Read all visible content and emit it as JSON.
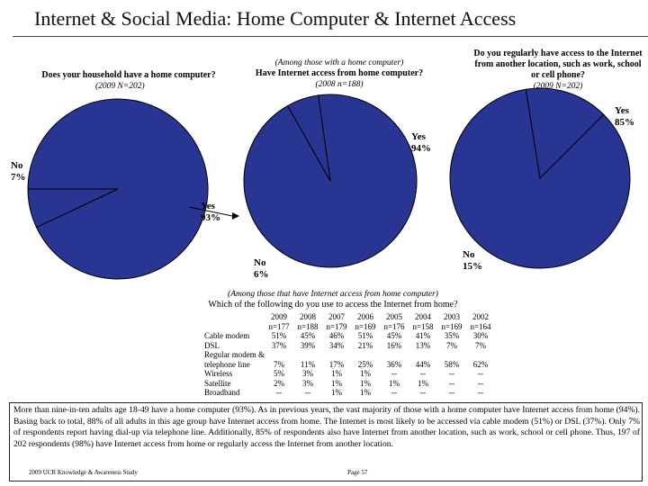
{
  "title": "Internet & Social Media:  Home Computer & Internet Access",
  "chart_data": [
    {
      "type": "pie",
      "title": "Does your household have a home computer?",
      "subtitle": "(2009 N=202)",
      "slices": [
        {
          "label": "Yes",
          "value": 93,
          "display": "93%"
        },
        {
          "label": "No",
          "value": 7,
          "display": "7%"
        }
      ]
    },
    {
      "type": "pie",
      "title": "Have Internet access from home computer?",
      "pretitle": "(Among those with a home computer)",
      "subtitle": "(2008 n=188)",
      "slices": [
        {
          "label": "Yes",
          "value": 94,
          "display": "94%"
        },
        {
          "label": "No",
          "value": 6,
          "display": "6%"
        }
      ]
    },
    {
      "type": "pie",
      "title": "Do you regularly have access to the Internet from another location, such as work, school or cell phone?",
      "subtitle": "(2009 N=202)",
      "slices": [
        {
          "label": "Yes",
          "value": 85,
          "display": "85%"
        },
        {
          "label": "No",
          "value": 15,
          "display": "15%"
        }
      ]
    }
  ],
  "table": {
    "pretitle": "(Among those that have Internet access from home computer)",
    "title": "Which of the following do you use to access the Internet from home?",
    "years": [
      "2009",
      "2008",
      "2007",
      "2006",
      "2005",
      "2004",
      "2003",
      "2002"
    ],
    "ns": [
      "n=177",
      "n=188",
      "n=179",
      "n=169",
      "n=176",
      "n=158",
      "n=169",
      "n=164"
    ],
    "rows": [
      {
        "label": "Cable modem",
        "values": [
          "51%",
          "45%",
          "46%",
          "51%",
          "45%",
          "41%",
          "35%",
          "30%"
        ]
      },
      {
        "label": "DSL",
        "values": [
          "37%",
          "39%",
          "34%",
          "21%",
          "16%",
          "13%",
          "7%",
          "7%"
        ]
      },
      {
        "label": "Regular modem &",
        "values": [
          "",
          "",
          "",
          "",
          "",
          "",
          "",
          ""
        ]
      },
      {
        "label": "telephone line",
        "values": [
          "7%",
          "11%",
          "17%",
          "25%",
          "36%",
          "44%",
          "58%",
          "62%"
        ]
      },
      {
        "label": "Wireless",
        "values": [
          "5%",
          "3%",
          "1%",
          "1%",
          "--",
          "--",
          "--",
          "--"
        ]
      },
      {
        "label": "Satellite",
        "values": [
          "2%",
          "3%",
          "1%",
          "1%",
          "1%",
          "1%",
          "--",
          "--"
        ]
      },
      {
        "label": "Broadband",
        "values": [
          "--",
          "--",
          "1%",
          "1%",
          "--",
          "--",
          "--",
          "--"
        ]
      }
    ]
  },
  "summary": "More than nine-in-ten adults age 18-49 have a home computer (93%). As in previous years, the vast majority of those with a home computer have Internet access from home (94%). Basing back to total, 88% of all adults in this age group have Internet access from home. The Internet is most likely to be accessed via cable modem (51%) or DSL (37%). Only 7% of respondents report having dial-up via telephone line. Additionally, 85% of respondents also have Internet from another location, such as work, school or cell phone. Thus, 197 of 202 respondents (98%) have Internet access from home or regularly access the Internet from another location.",
  "footer": {
    "left": "2009 UCR Knowledge & Awareness Study",
    "page": "Page 57"
  },
  "colors": {
    "pie_fill": "#283593",
    "pie_stroke": "#000000"
  }
}
